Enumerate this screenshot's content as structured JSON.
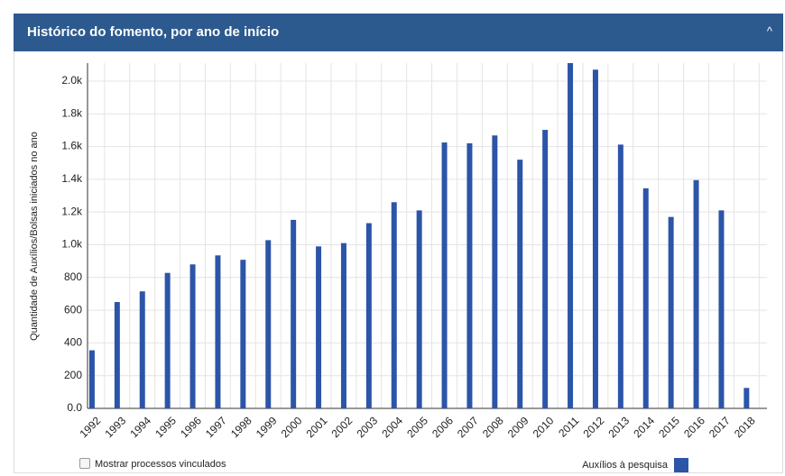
{
  "header": {
    "title": "Histórico do fomento, por ano de início"
  },
  "checkbox": {
    "label": "Mostrar processos vinculados"
  },
  "chart_data": {
    "type": "bar",
    "y_label": "Quantidade de Auxílios/Bolsas iniciados no ano",
    "categories": [
      "1992",
      "1993",
      "1994",
      "1995",
      "1996",
      "1997",
      "1998",
      "1999",
      "2000",
      "2001",
      "2002",
      "2003",
      "2004",
      "2005",
      "2006",
      "2007",
      "2008",
      "2009",
      "2010",
      "2011",
      "2012",
      "2013",
      "2014",
      "2015",
      "2016",
      "2017",
      "2018"
    ],
    "series": [
      {
        "name": "Auxílios à pesquisa",
        "color": "#2c55a8",
        "values": [
          355,
          650,
          715,
          828,
          880,
          935,
          908,
          1028,
          1152,
          990,
          1010,
          1132,
          1260,
          1210,
          1625,
          1620,
          1668,
          1520,
          1702,
          2110,
          2070,
          1612,
          1345,
          1170,
          1395,
          1210,
          125
        ]
      }
    ],
    "ylim": [
      0,
      2110
    ],
    "yticks": [
      {
        "value": 0,
        "label": "0.0"
      },
      200,
      400,
      600,
      800,
      {
        "value": 1000,
        "label": "1.0k"
      },
      {
        "value": 1200,
        "label": "1.2k"
      },
      {
        "value": 1400,
        "label": "1.4k"
      },
      {
        "value": 1600,
        "label": "1.6k"
      },
      {
        "value": 1800,
        "label": "1.8k"
      },
      {
        "value": 2000,
        "label": "2.0k"
      }
    ],
    "grid": true,
    "legend": "bottom-right"
  }
}
